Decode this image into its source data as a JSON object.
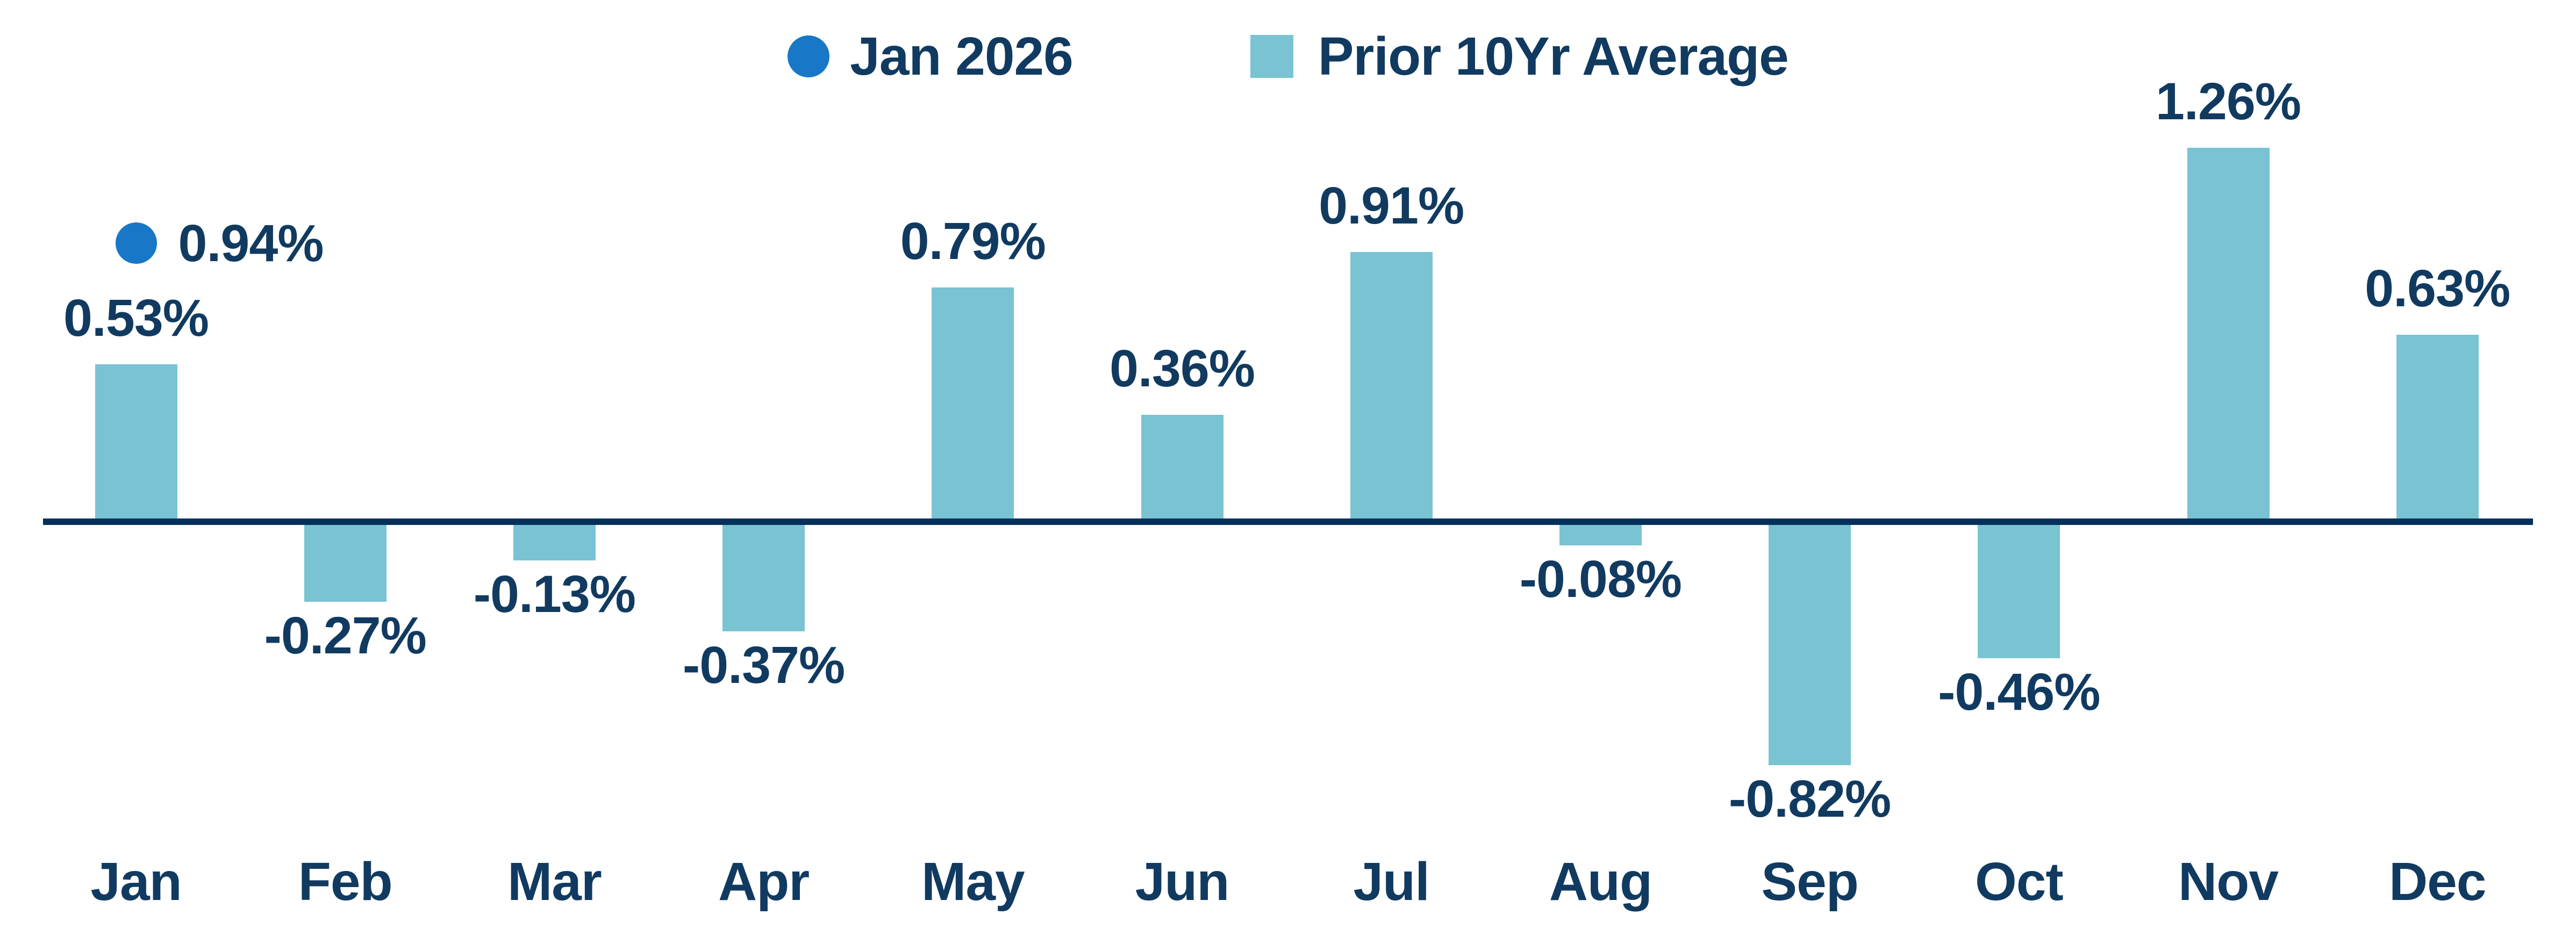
{
  "legend": {
    "items": [
      {
        "label": "Jan 2026",
        "marker": "circle",
        "color_key": "point"
      },
      {
        "label": "Prior 10Yr Average",
        "marker": "square",
        "color_key": "bar"
      }
    ]
  },
  "colors": {
    "point": "#1877C6",
    "bar": "#79C3D3",
    "axis": "#04305A",
    "label_text": "#113A60"
  },
  "chart_data": {
    "type": "bar",
    "title": "",
    "xlabel": "",
    "ylabel": "",
    "categories": [
      "Jan",
      "Feb",
      "Mar",
      "Apr",
      "May",
      "Jun",
      "Jul",
      "Aug",
      "Sep",
      "Oct",
      "Nov",
      "Dec"
    ],
    "series": [
      {
        "name": "Jan 2026",
        "type": "scatter",
        "marker": "circle",
        "x": [
          "Jan"
        ],
        "values": [
          0.94
        ]
      },
      {
        "name": "Prior 10Yr Average",
        "type": "bar",
        "values": [
          0.53,
          -0.27,
          -0.13,
          -0.37,
          0.79,
          0.36,
          0.91,
          -0.08,
          -0.82,
          -0.46,
          1.26,
          0.63
        ]
      }
    ],
    "data_labels": [
      "0.53%",
      "-0.27%",
      "-0.13%",
      "-0.37%",
      "0.79%",
      "0.36%",
      "0.91%",
      "-0.08%",
      "-0.82%",
      "-0.46%",
      "1.26%",
      "0.63%"
    ],
    "point_data_label": "0.94%",
    "label_format": "percent_2dp",
    "ylim": [
      -1.0,
      1.4
    ],
    "grid": false,
    "y_axis_visible": false,
    "zero_line": true,
    "legend_position": "top-center"
  }
}
